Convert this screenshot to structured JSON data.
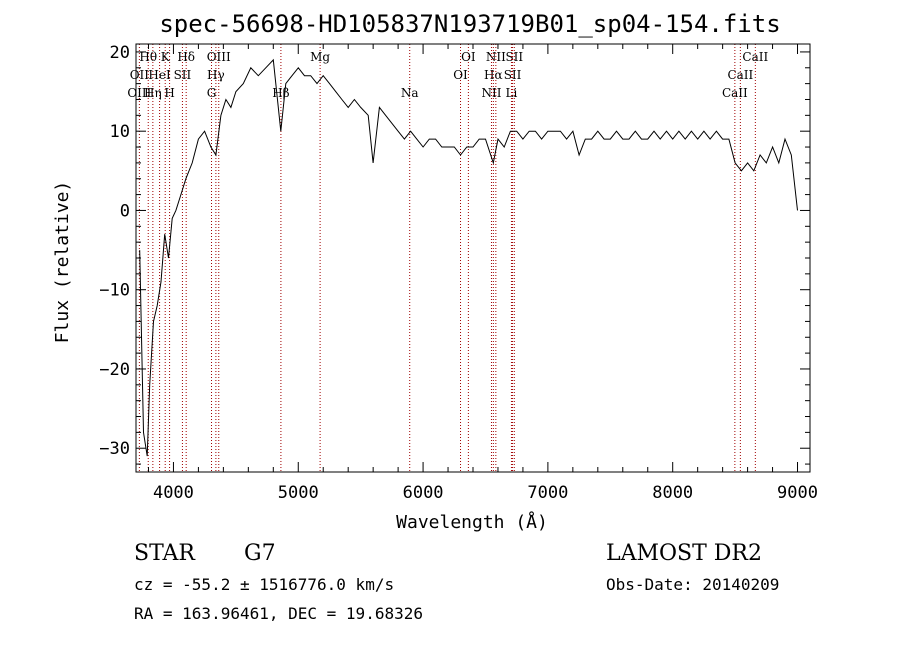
{
  "chart_data": {
    "type": "line",
    "title": "spec-56698-HD105837N193719B01_sp04-154.fits",
    "xlabel": "Wavelength (Å)",
    "ylabel": "Flux (relative)",
    "xlim": [
      3700,
      9100
    ],
    "ylim": [
      -33,
      21
    ],
    "xticks": [
      4000,
      5000,
      6000,
      7000,
      8000,
      9000
    ],
    "yticks": [
      -30,
      -20,
      -10,
      0,
      10,
      20
    ],
    "grid": false,
    "series": [
      {
        "x": [
          3730,
          3760,
          3790,
          3810,
          3840,
          3870,
          3900,
          3930,
          3960,
          3990,
          4020,
          4060,
          4100,
          4150,
          4200,
          4250,
          4300,
          4340,
          4380,
          4420,
          4460,
          4500,
          4560,
          4620,
          4680,
          4740,
          4800,
          4860,
          4900,
          4950,
          5000,
          5050,
          5100,
          5150,
          5200,
          5250,
          5300,
          5350,
          5400,
          5450,
          5500,
          5560,
          5600,
          5650,
          5700,
          5750,
          5800,
          5850,
          5900,
          5950,
          6000,
          6050,
          6100,
          6150,
          6200,
          6250,
          6300,
          6350,
          6400,
          6450,
          6500,
          6563,
          6600,
          6650,
          6700,
          6750,
          6800,
          6850,
          6900,
          6950,
          7000,
          7050,
          7100,
          7150,
          7200,
          7250,
          7300,
          7350,
          7400,
          7450,
          7500,
          7550,
          7600,
          7650,
          7700,
          7750,
          7800,
          7850,
          7900,
          7950,
          8000,
          8050,
          8100,
          8150,
          8200,
          8250,
          8300,
          8350,
          8400,
          8450,
          8500,
          8550,
          8600,
          8650,
          8700,
          8750,
          8800,
          8850,
          8900,
          8950,
          9000
        ],
        "values": [
          -5,
          -28,
          -31,
          -22,
          -14,
          -12,
          -9,
          -3,
          -6,
          -1,
          0,
          2,
          4,
          6,
          9,
          10,
          8,
          7,
          12,
          14,
          13,
          15,
          16,
          18,
          17,
          18,
          19,
          10,
          16,
          17,
          18,
          17,
          17,
          16,
          17,
          16,
          15,
          14,
          13,
          14,
          13,
          12,
          6,
          13,
          12,
          11,
          10,
          9,
          10,
          9,
          8,
          9,
          9,
          8,
          8,
          8,
          7,
          8,
          8,
          9,
          9,
          6,
          9,
          8,
          10,
          10,
          9,
          10,
          10,
          9,
          10,
          10,
          10,
          9,
          10,
          7,
          9,
          9,
          10,
          9,
          9,
          10,
          9,
          9,
          10,
          9,
          9,
          10,
          9,
          10,
          9,
          10,
          9,
          10,
          9,
          10,
          9,
          10,
          9,
          9,
          6,
          5,
          6,
          5,
          7,
          6,
          8,
          6,
          9,
          7,
          0
        ]
      }
    ],
    "spectral_lines": [
      {
        "label": "Hθ",
        "x": 3798,
        "row": 0
      },
      {
        "label": "OII",
        "x": 3727,
        "row": 1
      },
      {
        "label": "OIII",
        "x": 3727,
        "row": 2
      },
      {
        "label": "K",
        "x": 3934,
        "row": 0
      },
      {
        "label": "HeI",
        "x": 3889,
        "row": 1
      },
      {
        "label": "Hη",
        "x": 3835,
        "row": 2
      },
      {
        "label": "Hδ",
        "x": 4102,
        "row": 0
      },
      {
        "label": "SII",
        "x": 4072,
        "row": 1
      },
      {
        "label": "H",
        "x": 3969,
        "row": 2
      },
      {
        "label": "OIII",
        "x": 4363,
        "row": 0
      },
      {
        "label": "Hγ",
        "x": 4340,
        "row": 1
      },
      {
        "label": "G",
        "x": 4305,
        "row": 2
      },
      {
        "label": "Hβ",
        "x": 4861,
        "row": 2
      },
      {
        "label": "Mg",
        "x": 5175,
        "row": 0
      },
      {
        "label": "Na",
        "x": 5893,
        "row": 2
      },
      {
        "label": "OI",
        "x": 6363,
        "row": 0
      },
      {
        "label": "OI",
        "x": 6300,
        "row": 1
      },
      {
        "label": "NII",
        "x": 6583,
        "row": 0
      },
      {
        "label": "Hα",
        "x": 6563,
        "row": 1
      },
      {
        "label": "NII",
        "x": 6548,
        "row": 2
      },
      {
        "label": "SII",
        "x": 6731,
        "row": 0
      },
      {
        "label": "SII",
        "x": 6717,
        "row": 1
      },
      {
        "label": "Li",
        "x": 6708,
        "row": 2
      },
      {
        "label": "CaII",
        "x": 8662,
        "row": 0
      },
      {
        "label": "CaII",
        "x": 8542,
        "row": 1
      },
      {
        "label": "CaII",
        "x": 8498,
        "row": 2
      }
    ]
  },
  "info": {
    "class": "STAR",
    "subclass": "G7",
    "survey": "LAMOST DR2",
    "velocity": "cz = -55.2 ± 1516776.0 km/s",
    "obs_date": "Obs-Date: 20140209",
    "coords": "RA = 163.96461, DEC =  19.68326"
  }
}
